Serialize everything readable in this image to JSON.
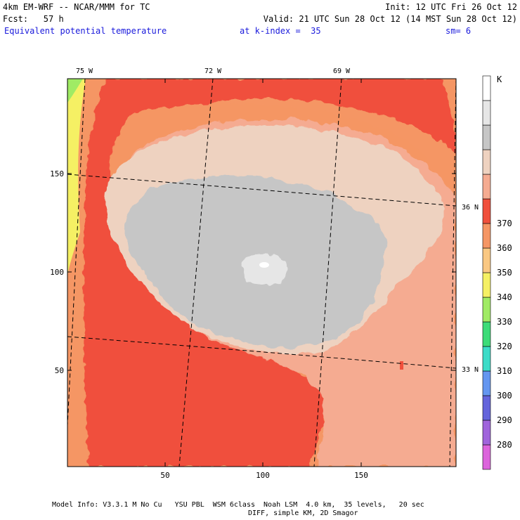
{
  "header": {
    "model_title": "4km EM-WRF -- NCAR/MMM for TC",
    "init": "Init: 12 UTC Fri 26 Oct 12",
    "forecast": "Fcst:   57 h",
    "valid": "Valid: 21 UTC Sun 28 Oct 12 (14 MST Sun 28 Oct 12)",
    "field": "Equivalent potential temperature",
    "level": "at k-index =  35",
    "smoothing": "sm= 6"
  },
  "map": {
    "x_ticks": [
      "50",
      "100",
      "150"
    ],
    "y_ticks": [
      "50",
      "100",
      "150"
    ],
    "longitude_labels": [
      "75 W",
      "72 W",
      "69 W"
    ],
    "latitude_labels": [
      "36 N",
      "33 N"
    ]
  },
  "colorbar": {
    "unit": "K",
    "levels": [
      "280",
      "290",
      "300",
      "310",
      "320",
      "330",
      "340",
      "350",
      "360",
      "370"
    ],
    "colors": [
      "#dc64dc",
      "#a064dc",
      "#6464dc",
      "#6496f0",
      "#3cdcc8",
      "#3cdc78",
      "#a0eb64",
      "#f5f064",
      "#fac882",
      "#f59664",
      "#f0503c",
      "#f5ab91",
      "#eed2c0",
      "#c6c6c6",
      "#e6e6e6",
      "#ffffff"
    ]
  },
  "footer": {
    "line1": "Model Info: V3.3.1 M No Cu   YSU PBL  WSM 6class  Noah LSM  4.0 km,  35 levels,   20 sec",
    "line2": "DIFF, simple KM, 2D Smagor"
  }
}
